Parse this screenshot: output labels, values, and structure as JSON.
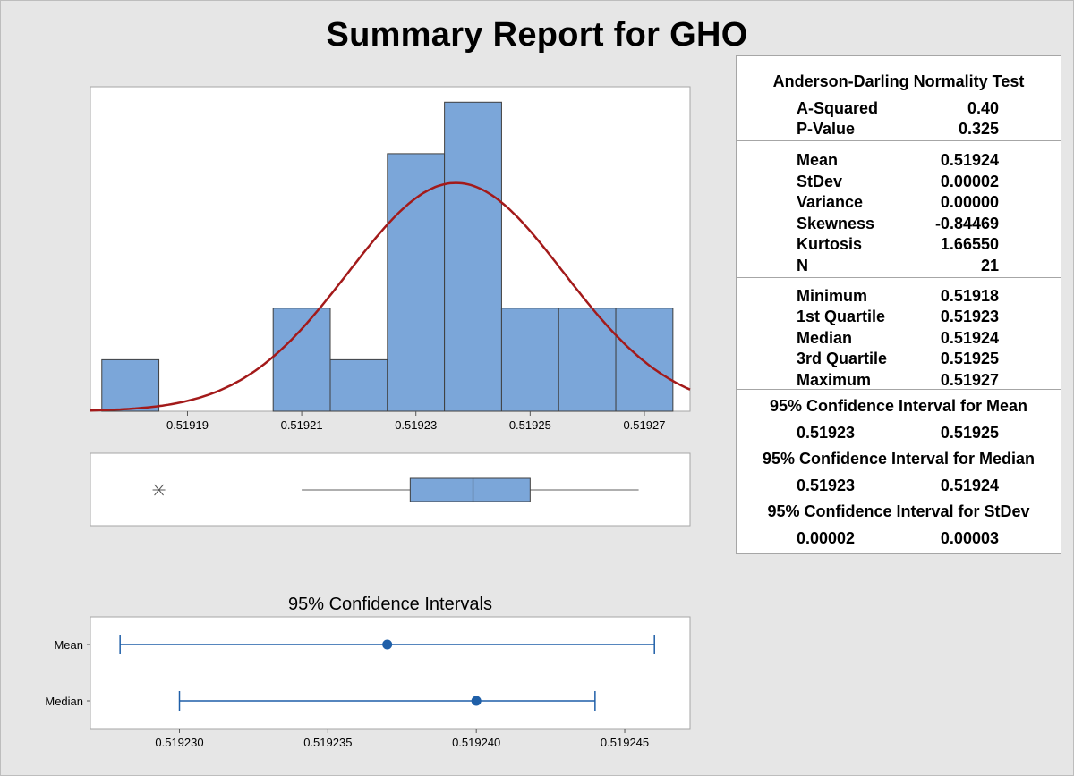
{
  "page": {
    "title": "Summary Report for GHO"
  },
  "stats_panel": {
    "ad_title": "Anderson-Darling Normality Test",
    "ad_rows": [
      {
        "label": "A-Squared",
        "value": "0.40"
      },
      {
        "label": "P-Value",
        "value": "0.325"
      }
    ],
    "moment_rows": [
      {
        "label": "Mean",
        "value": "0.51924"
      },
      {
        "label": "StDev",
        "value": "0.00002"
      },
      {
        "label": "Variance",
        "value": "0.00000"
      },
      {
        "label": "Skewness",
        "value": "-0.84469"
      },
      {
        "label": "Kurtosis",
        "value": "1.66550"
      },
      {
        "label": "N",
        "value": "21"
      }
    ],
    "quantile_rows": [
      {
        "label": "Minimum",
        "value": "0.51918"
      },
      {
        "label": "1st Quartile",
        "value": "0.51923"
      },
      {
        "label": "Median",
        "value": "0.51924"
      },
      {
        "label": "3rd Quartile",
        "value": "0.51925"
      },
      {
        "label": "Maximum",
        "value": "0.51927"
      }
    ],
    "ci_mean_title": "95% Confidence Interval for Mean",
    "ci_mean": [
      "0.51923",
      "0.51925"
    ],
    "ci_median_title": "95% Confidence Interval for Median",
    "ci_median": [
      "0.51923",
      "0.51924"
    ],
    "ci_stdev_title": "95% Confidence Interval for StDev",
    "ci_stdev": [
      "0.00002",
      "0.00003"
    ]
  },
  "chart_data": [
    {
      "type": "bar",
      "subtype": "histogram",
      "bin_width": 1e-05,
      "bin_left_edges": [
        0.519175,
        0.519205,
        0.519215,
        0.519225,
        0.519235,
        0.519245,
        0.519255,
        0.519265
      ],
      "counts": [
        1,
        2,
        1,
        5,
        6,
        2,
        2,
        2
      ],
      "xlim": [
        0.519173,
        0.519278
      ],
      "ylim": [
        0,
        6.3
      ],
      "x_ticks": [
        0.51919,
        0.51921,
        0.51923,
        0.51925,
        0.51927
      ],
      "x_tick_labels": [
        "0.51919",
        "0.51921",
        "0.51923",
        "0.51925",
        "0.51927"
      ],
      "fit_curve": {
        "type": "normal",
        "mean": 0.519237,
        "stdev": 1.89e-05,
        "color": "#a31a1a"
      },
      "bar_color": "#7ba6d9",
      "grid": false
    },
    {
      "type": "boxplot",
      "xlim": [
        0.519173,
        0.519278
      ],
      "outliers": [
        0.519185
      ],
      "whisker_low": 0.51921,
      "q1": 0.519229,
      "median": 0.51924,
      "q3": 0.51925,
      "whisker_high": 0.519269,
      "box_color": "#7ba6d9"
    },
    {
      "type": "interval",
      "title": "95% Confidence Intervals",
      "categories": [
        "Mean",
        "Median"
      ],
      "centers": [
        0.519237,
        0.51924
      ],
      "lower": [
        0.519228,
        0.51923
      ],
      "upper": [
        0.519246,
        0.519244
      ],
      "xlim": [
        0.519227,
        0.5192472
      ],
      "x_ticks": [
        0.51923,
        0.519235,
        0.51924,
        0.519245
      ],
      "x_tick_labels": [
        "0.519230",
        "0.519235",
        "0.519240",
        "0.519245"
      ],
      "color": "#1f5fa8"
    }
  ]
}
